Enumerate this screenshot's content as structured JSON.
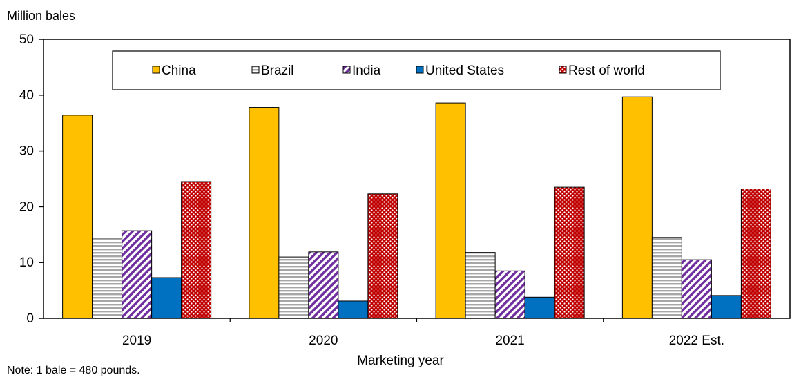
{
  "chart_data": {
    "type": "bar",
    "title": "",
    "ylabel": "Million bales",
    "xlabel": "Marketing year",
    "note": "Note: 1 bale = 480 pounds.",
    "categories": [
      "2019",
      "2020",
      "2021",
      "2022 Est."
    ],
    "ylim": [
      0,
      50
    ],
    "yticks": [
      0,
      10,
      20,
      30,
      40,
      50
    ],
    "grid": false,
    "legend": "top-center",
    "series": [
      {
        "name": "China",
        "values": [
          36.4,
          37.8,
          38.6,
          39.7
        ],
        "color": "#FFC000",
        "pattern": "solid"
      },
      {
        "name": "Brazil",
        "values": [
          14.4,
          11.0,
          11.8,
          14.5
        ],
        "color": "#A6A6A6",
        "pattern": "horizontal-lines"
      },
      {
        "name": "India",
        "values": [
          15.7,
          11.9,
          8.5,
          10.5
        ],
        "color": "#7030A0",
        "pattern": "diagonal-lines"
      },
      {
        "name": "United States",
        "values": [
          7.3,
          3.1,
          3.8,
          4.1
        ],
        "color": "#0070C0",
        "pattern": "solid"
      },
      {
        "name": "Rest of world",
        "values": [
          24.5,
          22.3,
          23.5,
          23.2
        ],
        "color": "#C00000",
        "pattern": "dots"
      }
    ]
  }
}
